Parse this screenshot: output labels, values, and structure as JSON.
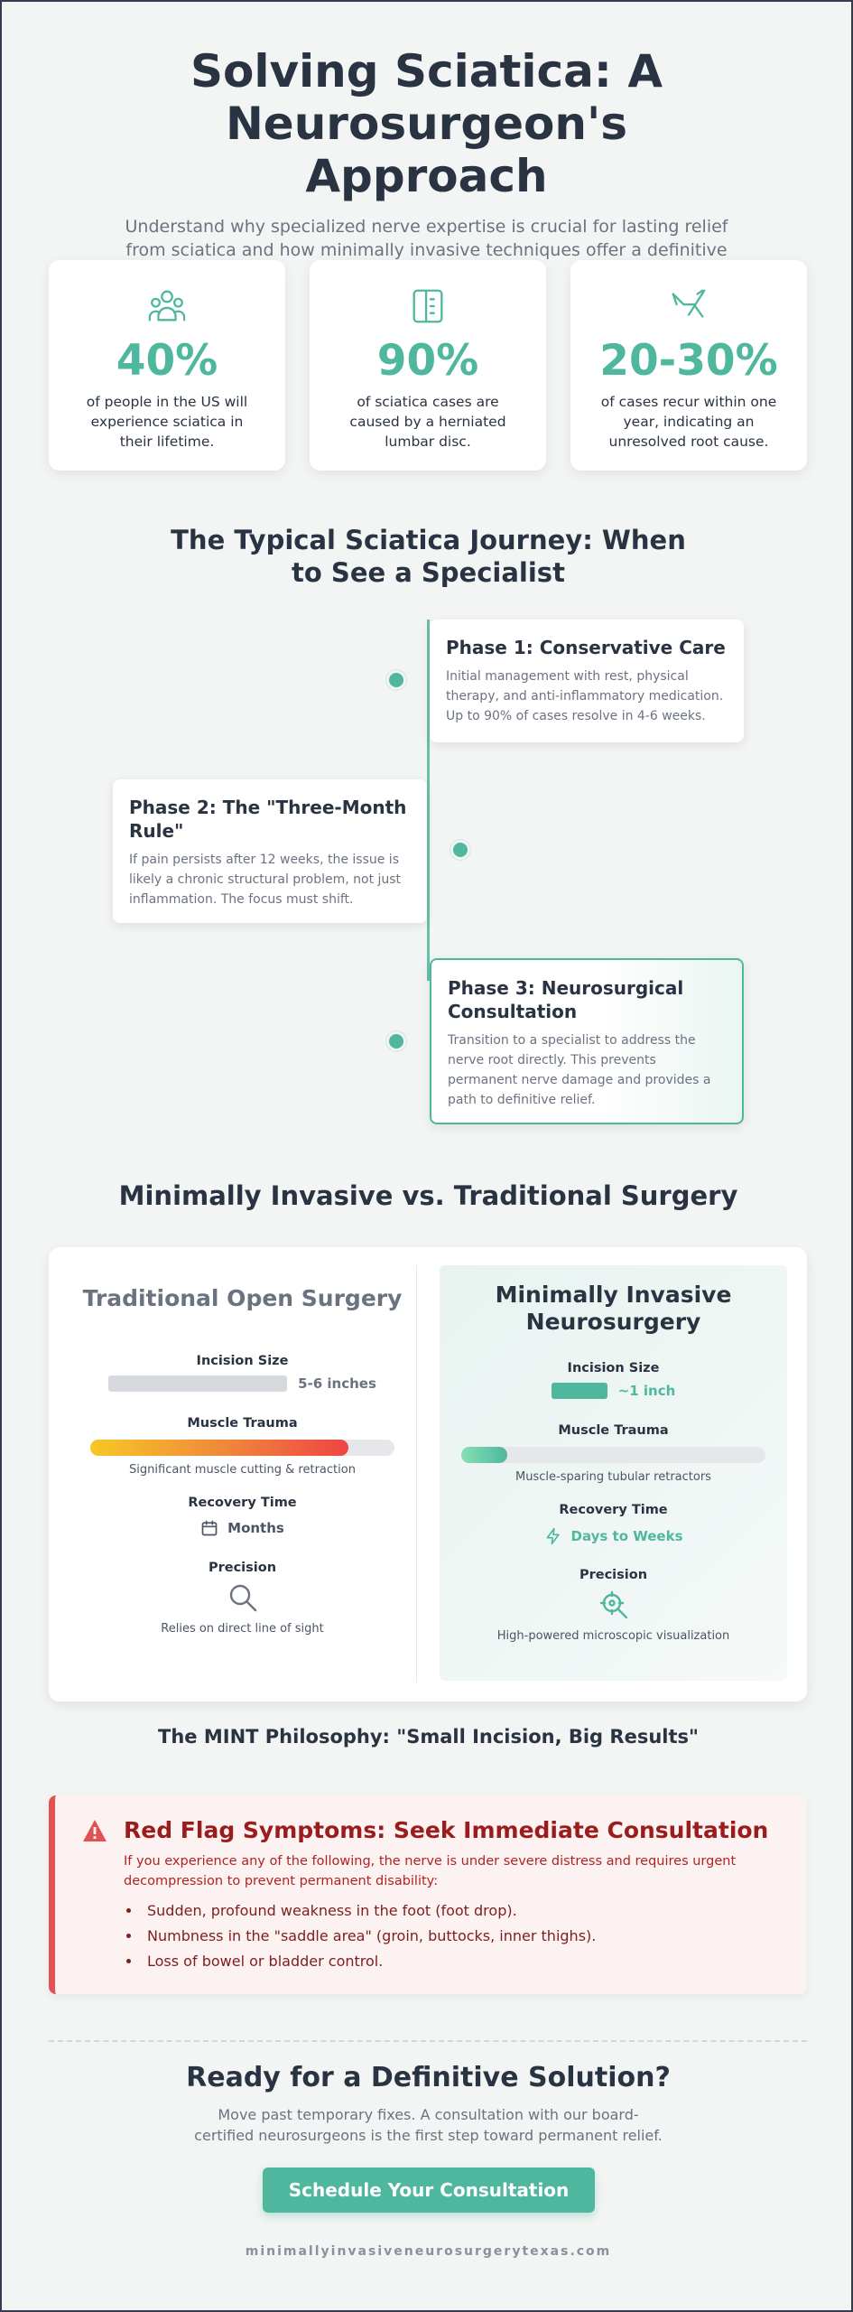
{
  "hero": {
    "title": "Solving Sciatica: A Neurosurgeon's Approach",
    "subtitle": "Understand why specialized nerve expertise is crucial for lasting relief from sciatica and how minimally invasive techniques offer a definitive solution."
  },
  "stats": [
    {
      "icon": "people-group-icon",
      "value": "40%",
      "text": "of people in the US will experience sciatica in their lifetime."
    },
    {
      "icon": "spine-disc-icon",
      "value": "90%",
      "text": "of sciatica cases are caused by a herniated lumbar disc."
    },
    {
      "icon": "nerve-branch-icon",
      "value": "20-30%",
      "text": "of cases recur within one year, indicating an unresolved root cause."
    }
  ],
  "journey": {
    "title": "The Typical Sciatica Journey: When to See a Specialist",
    "phases": [
      {
        "title": "Phase 1: Conservative Care",
        "text": "Initial management with rest, physical therapy, and anti-inflammatory medication. Up to 90% of cases resolve in 4-6 weeks."
      },
      {
        "title": "Phase 2: The \"Three-Month Rule\"",
        "text": "If pain persists after 12 weeks, the issue is likely a chronic structural problem, not just inflammation. The focus must shift."
      },
      {
        "title": "Phase 3: Neurosurgical Consultation",
        "text": "Transition to a specialist to address the nerve root directly. This prevents permanent nerve damage and provides a path to definitive relief."
      }
    ]
  },
  "comparison": {
    "title": "Minimally Invasive vs. Traditional Surgery",
    "traditional": {
      "heading": "Traditional Open Surgery",
      "incision_label": "Incision Size",
      "incision_value": "5-6 inches",
      "muscle_label": "Muscle Trauma",
      "muscle_level": 0.85,
      "muscle_note": "Significant muscle cutting & retraction",
      "recovery_label": "Recovery Time",
      "recovery_value": "Months",
      "precision_label": "Precision",
      "precision_note": "Relies on direct line of sight"
    },
    "minimal": {
      "heading": "Minimally Invasive Neurosurgery",
      "incision_label": "Incision Size",
      "incision_value": "~1 inch",
      "muscle_label": "Muscle Trauma",
      "muscle_level": 0.15,
      "muscle_note": "Muscle-sparing tubular retractors",
      "recovery_label": "Recovery Time",
      "recovery_value": "Days to Weeks",
      "precision_label": "Precision",
      "precision_note": "High-powered microscopic visualization"
    },
    "tagline": "The MINT Philosophy: \"Small Incision, Big Results\""
  },
  "redflag": {
    "title": "Red Flag Symptoms: Seek Immediate Consultation",
    "lead": "If you experience any of the following, the nerve is under severe distress and requires urgent decompression to prevent permanent disability:",
    "items": [
      "Sudden, profound weakness in the foot (foot drop).",
      "Numbness in the \"saddle area\" (groin, buttocks, inner thighs).",
      "Loss of bowel or bladder control."
    ]
  },
  "cta": {
    "title": "Ready for a Definitive Solution?",
    "text": "Move past temporary fixes. A consultation with our board-certified neurosurgeons is the first step toward permanent relief.",
    "button": "Schedule Your Consultation"
  },
  "footer": "minimallyinvasiveneurosurgerytexas.com",
  "colors": {
    "accent": "#4fb79d",
    "danger": "#e05253",
    "text": "#2a3342",
    "muted": "#6b7280"
  }
}
